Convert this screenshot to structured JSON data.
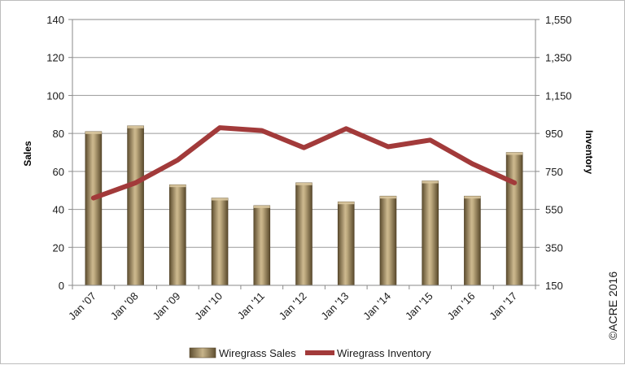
{
  "chart_data": {
    "type": "bar",
    "categories": [
      "Jan '07",
      "Jan '08",
      "Jan '09",
      "Jan '10",
      "Jan '11",
      "Jan '12",
      "Jan '13",
      "Jan '14",
      "Jan '15",
      "Jan '16",
      "Jan '17"
    ],
    "series": [
      {
        "name": "Wiregrass Sales",
        "type": "bar",
        "axis": "left",
        "color": "#8b7750",
        "values": [
          81,
          84,
          53,
          46,
          42,
          54,
          44,
          47,
          55,
          47,
          70
        ]
      },
      {
        "name": "Wiregrass Inventory",
        "type": "line",
        "axis": "right",
        "color": "#a23a3a",
        "values": [
          610,
          690,
          810,
          980,
          965,
          875,
          975,
          880,
          915,
          790,
          690
        ]
      }
    ],
    "ylabel": "Sales",
    "y2label": "Inventory",
    "ylim": [
      0,
      140
    ],
    "y2lim": [
      150,
      1550
    ],
    "yticks": [
      0,
      20,
      40,
      60,
      80,
      100,
      120,
      140
    ],
    "y2ticks": [
      "150",
      "350",
      "550",
      "750",
      "950",
      "1,150",
      "1,350",
      "1,550"
    ],
    "grid": true,
    "legend_position": "bottom"
  },
  "copyright": "©ACRE 2016"
}
